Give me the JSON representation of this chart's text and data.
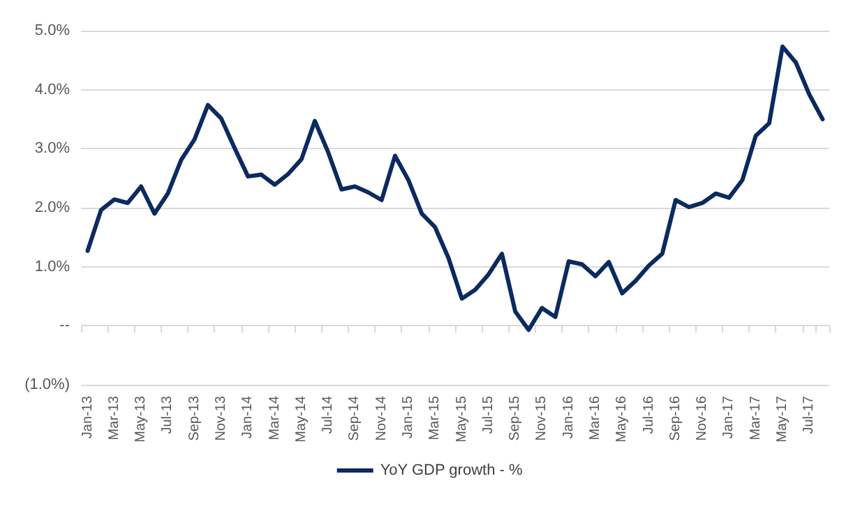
{
  "chart_data": {
    "type": "line",
    "categories": [
      "Jan-13",
      null,
      "Mar-13",
      null,
      "May-13",
      null,
      "Jul-13",
      null,
      "Sep-13",
      null,
      "Nov-13",
      null,
      "Jan-14",
      null,
      "Mar-14",
      null,
      "May-14",
      null,
      "Jul-14",
      null,
      "Sep-14",
      null,
      "Nov-14",
      null,
      "Jan-15",
      null,
      "Mar-15",
      null,
      "May-15",
      null,
      "Jul-15",
      null,
      "Sep-15",
      null,
      "Nov-15",
      null,
      "Jan-16",
      null,
      "Mar-16",
      null,
      "May-16",
      null,
      "Jul-16",
      null,
      "Sep-16",
      null,
      "Nov-16",
      null,
      "Jan-17",
      null,
      "Mar-17",
      null,
      "May-17",
      null,
      "Jul-17",
      null
    ],
    "series": [
      {
        "name": "YoY GDP growth - %",
        "color": "#0b2a5f",
        "values": [
          1.27,
          1.96,
          2.14,
          2.08,
          2.36,
          1.9,
          2.24,
          2.81,
          3.16,
          3.74,
          3.51,
          3.01,
          2.53,
          2.56,
          2.39,
          2.57,
          2.82,
          3.47,
          2.94,
          2.31,
          2.36,
          2.26,
          2.13,
          2.88,
          2.47,
          1.9,
          1.67,
          1.15,
          0.46,
          0.61,
          0.87,
          1.22,
          0.24,
          -0.07,
          0.3,
          0.15,
          1.09,
          1.04,
          0.84,
          1.08,
          0.55,
          0.76,
          1.02,
          1.22,
          2.13,
          2.01,
          2.08,
          2.24,
          2.17,
          2.47,
          3.22,
          3.43,
          4.73,
          4.46,
          3.92,
          3.5
        ]
      }
    ],
    "ylim": [
      -1,
      5
    ],
    "yticks": [
      {
        "value": -1,
        "label": "(1.0%)"
      },
      {
        "value": 0,
        "label": "--"
      },
      {
        "value": 1,
        "label": "1.0%"
      },
      {
        "value": 2,
        "label": "2.0%"
      },
      {
        "value": 3,
        "label": "3.0%"
      },
      {
        "value": 4,
        "label": "4.0%"
      },
      {
        "value": 5,
        "label": "5.0%"
      }
    ],
    "grid": "y",
    "legend": "bottom",
    "marker": "none",
    "line_style": "solid"
  }
}
